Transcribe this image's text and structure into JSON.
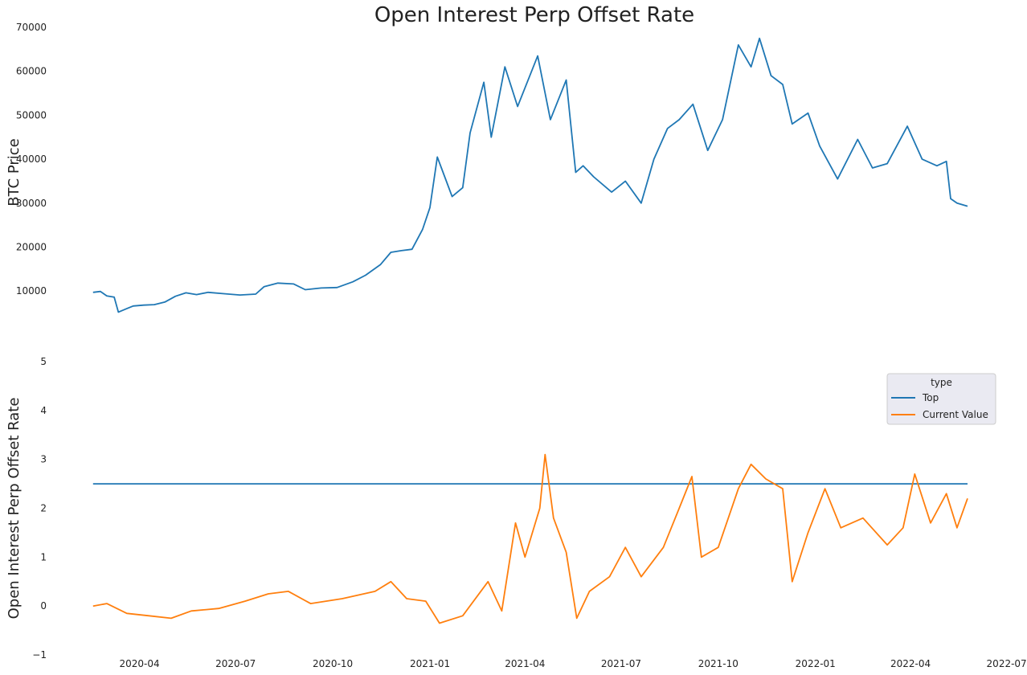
{
  "figure": {
    "title": "Open Interest Perp Offset Rate"
  },
  "chart_data": [
    {
      "type": "line",
      "ylabel": "BTC  Price",
      "xlabel": "",
      "grid": false,
      "ylim": [
        4000,
        70000
      ],
      "yticks": [
        10000,
        20000,
        30000,
        40000,
        50000,
        60000,
        70000
      ],
      "xlim": [
        "2020-02-05",
        "2022-06-29"
      ],
      "series": [
        {
          "color": "#1f77b4",
          "points": [
            [
              "2020-02-17",
              9700
            ],
            [
              "2020-02-24",
              9900
            ],
            [
              "2020-03-01",
              8900
            ],
            [
              "2020-03-08",
              8600
            ],
            [
              "2020-03-12",
              5200
            ],
            [
              "2020-03-19",
              5900
            ],
            [
              "2020-03-26",
              6600
            ],
            [
              "2020-04-05",
              6800
            ],
            [
              "2020-04-15",
              6900
            ],
            [
              "2020-04-25",
              7500
            ],
            [
              "2020-05-05",
              8800
            ],
            [
              "2020-05-15",
              9600
            ],
            [
              "2020-05-25",
              9200
            ],
            [
              "2020-06-05",
              9700
            ],
            [
              "2020-06-20",
              9400
            ],
            [
              "2020-07-05",
              9100
            ],
            [
              "2020-07-20",
              9300
            ],
            [
              "2020-07-28",
              11000
            ],
            [
              "2020-08-10",
              11800
            ],
            [
              "2020-08-25",
              11600
            ],
            [
              "2020-09-05",
              10300
            ],
            [
              "2020-09-20",
              10700
            ],
            [
              "2020-10-05",
              10800
            ],
            [
              "2020-10-20",
              12100
            ],
            [
              "2020-11-01",
              13600
            ],
            [
              "2020-11-15",
              16000
            ],
            [
              "2020-11-25",
              18800
            ],
            [
              "2020-12-05",
              19200
            ],
            [
              "2020-12-15",
              19500
            ],
            [
              "2020-12-25",
              24000
            ],
            [
              "2021-01-01",
              29000
            ],
            [
              "2021-01-08",
              40500
            ],
            [
              "2021-01-15",
              36000
            ],
            [
              "2021-01-22",
              31500
            ],
            [
              "2021-02-01",
              33500
            ],
            [
              "2021-02-08",
              46000
            ],
            [
              "2021-02-21",
              57500
            ],
            [
              "2021-02-28",
              45000
            ],
            [
              "2021-03-13",
              61000
            ],
            [
              "2021-03-25",
              52000
            ],
            [
              "2021-04-13",
              63500
            ],
            [
              "2021-04-25",
              49000
            ],
            [
              "2021-05-10",
              58000
            ],
            [
              "2021-05-19",
              37000
            ],
            [
              "2021-05-26",
              38500
            ],
            [
              "2021-06-05",
              36000
            ],
            [
              "2021-06-22",
              32500
            ],
            [
              "2021-07-05",
              35000
            ],
            [
              "2021-07-20",
              30000
            ],
            [
              "2021-08-01",
              40000
            ],
            [
              "2021-08-14",
              47000
            ],
            [
              "2021-08-25",
              49000
            ],
            [
              "2021-09-07",
              52500
            ],
            [
              "2021-09-21",
              42000
            ],
            [
              "2021-10-05",
              49000
            ],
            [
              "2021-10-20",
              66000
            ],
            [
              "2021-11-01",
              61000
            ],
            [
              "2021-11-09",
              67500
            ],
            [
              "2021-11-20",
              59000
            ],
            [
              "2021-12-01",
              57000
            ],
            [
              "2021-12-10",
              48000
            ],
            [
              "2021-12-25",
              50500
            ],
            [
              "2022-01-05",
              43000
            ],
            [
              "2022-01-22",
              35500
            ],
            [
              "2022-02-10",
              44500
            ],
            [
              "2022-02-24",
              38000
            ],
            [
              "2022-03-10",
              39000
            ],
            [
              "2022-03-29",
              47500
            ],
            [
              "2022-04-12",
              40000
            ],
            [
              "2022-04-26",
              38500
            ],
            [
              "2022-05-05",
              39500
            ],
            [
              "2022-05-09",
              31000
            ],
            [
              "2022-05-15",
              30000
            ],
            [
              "2022-05-25",
              29300
            ]
          ]
        }
      ]
    },
    {
      "type": "line",
      "ylabel": "Open Interest Perp Offset Rate",
      "xlabel": "",
      "grid": false,
      "ylim": [
        -1,
        5
      ],
      "yticks": [
        -1,
        0,
        1,
        2,
        3,
        4,
        5
      ],
      "xlim": [
        "2020-02-05",
        "2022-06-29"
      ],
      "xticks": [
        "2020-04",
        "2020-07",
        "2020-10",
        "2021-01",
        "2021-04",
        "2021-07",
        "2021-10",
        "2022-01",
        "2022-04",
        "2022-07"
      ],
      "legend": {
        "title": "type",
        "placement": "top-right"
      },
      "series": [
        {
          "name": "Top",
          "color": "#1f77b4",
          "points": [
            [
              "2020-02-17",
              2.5
            ],
            [
              "2022-05-25",
              2.5
            ]
          ]
        },
        {
          "name": "Current Value",
          "color": "#ff7f0e",
          "points": [
            [
              "2020-02-17",
              0.0
            ],
            [
              "2020-03-01",
              0.05
            ],
            [
              "2020-03-20",
              -0.15
            ],
            [
              "2020-04-10",
              -0.2
            ],
            [
              "2020-05-01",
              -0.25
            ],
            [
              "2020-05-20",
              -0.1
            ],
            [
              "2020-06-15",
              -0.05
            ],
            [
              "2020-07-10",
              0.1
            ],
            [
              "2020-08-01",
              0.25
            ],
            [
              "2020-08-20",
              0.3
            ],
            [
              "2020-09-10",
              0.05
            ],
            [
              "2020-10-10",
              0.15
            ],
            [
              "2020-11-10",
              0.3
            ],
            [
              "2020-11-25",
              0.5
            ],
            [
              "2020-12-10",
              0.15
            ],
            [
              "2020-12-28",
              0.1
            ],
            [
              "2021-01-10",
              -0.35
            ],
            [
              "2021-02-01",
              -0.2
            ],
            [
              "2021-02-25",
              0.5
            ],
            [
              "2021-03-10",
              -0.1
            ],
            [
              "2021-03-23",
              1.7
            ],
            [
              "2021-04-01",
              1.0
            ],
            [
              "2021-04-15",
              2.0
            ],
            [
              "2021-04-20",
              3.1
            ],
            [
              "2021-04-28",
              1.8
            ],
            [
              "2021-05-10",
              1.1
            ],
            [
              "2021-05-20",
              -0.25
            ],
            [
              "2021-06-01",
              0.3
            ],
            [
              "2021-06-20",
              0.6
            ],
            [
              "2021-07-05",
              1.2
            ],
            [
              "2021-07-20",
              0.6
            ],
            [
              "2021-08-10",
              1.2
            ],
            [
              "2021-08-25",
              2.0
            ],
            [
              "2021-09-06",
              2.65
            ],
            [
              "2021-09-15",
              1.0
            ],
            [
              "2021-10-01",
              1.2
            ],
            [
              "2021-10-20",
              2.4
            ],
            [
              "2021-11-01",
              2.9
            ],
            [
              "2021-11-15",
              2.6
            ],
            [
              "2021-12-01",
              2.4
            ],
            [
              "2021-12-10",
              0.5
            ],
            [
              "2021-12-25",
              1.5
            ],
            [
              "2022-01-10",
              2.4
            ],
            [
              "2022-01-25",
              1.6
            ],
            [
              "2022-02-15",
              1.8
            ],
            [
              "2022-03-10",
              1.25
            ],
            [
              "2022-03-25",
              1.6
            ],
            [
              "2022-04-05",
              2.7
            ],
            [
              "2022-04-20",
              1.7
            ],
            [
              "2022-05-05",
              2.3
            ],
            [
              "2022-05-15",
              1.6
            ],
            [
              "2022-05-25",
              2.2
            ]
          ]
        }
      ]
    }
  ]
}
